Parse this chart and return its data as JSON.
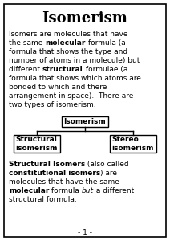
{
  "title": "Isomerism",
  "tree_root": "Isomerism",
  "tree_left": "Structural\nisomerism",
  "tree_right": "Stereo\nisomerism",
  "page_num": "- 1 -",
  "bg_color": "#ffffff",
  "border_color": "#000000",
  "title_fontsize": 13,
  "body_fontsize": 6.5,
  "tree_fontsize": 6.5,
  "intro_lines": [
    [
      {
        "text": "Isomers are molecules that have",
        "bold": false,
        "italic": false
      }
    ],
    [
      {
        "text": "the same ",
        "bold": false,
        "italic": false
      },
      {
        "text": "molecular",
        "bold": true,
        "italic": false
      },
      {
        "text": " formula (a",
        "bold": false,
        "italic": false
      }
    ],
    [
      {
        "text": "formula that shows the type and",
        "bold": false,
        "italic": false
      }
    ],
    [
      {
        "text": "number of atoms in a molecule) but",
        "bold": false,
        "italic": false
      }
    ],
    [
      {
        "text": "different ",
        "bold": false,
        "italic": false
      },
      {
        "text": "structural",
        "bold": true,
        "italic": false
      },
      {
        "text": " formulae (a",
        "bold": false,
        "italic": false
      }
    ],
    [
      {
        "text": "formula that shows which atoms are",
        "bold": false,
        "italic": false
      }
    ],
    [
      {
        "text": "bonded to which and there",
        "bold": false,
        "italic": false
      }
    ],
    [
      {
        "text": "arrangement in space).  There are",
        "bold": false,
        "italic": false
      }
    ],
    [
      {
        "text": "two types of isomerism.",
        "bold": false,
        "italic": false
      }
    ]
  ],
  "bottom_lines": [
    [
      {
        "text": "Structural Isomers",
        "bold": true,
        "italic": false
      },
      {
        "text": " (also called",
        "bold": false,
        "italic": false
      }
    ],
    [
      {
        "text": "constitutional isomers",
        "bold": true,
        "italic": false
      },
      {
        "text": ") are",
        "bold": false,
        "italic": false
      }
    ],
    [
      {
        "text": "molecules that have the same",
        "bold": false,
        "italic": false
      }
    ],
    [
      {
        "text": "molecular",
        "bold": true,
        "italic": false
      },
      {
        "text": " formula ",
        "bold": false,
        "italic": false
      },
      {
        "text": "but",
        "bold": false,
        "italic": true
      },
      {
        "text": " a different",
        "bold": false,
        "italic": false
      }
    ],
    [
      {
        "text": "structural formula.",
        "bold": false,
        "italic": false
      }
    ]
  ]
}
